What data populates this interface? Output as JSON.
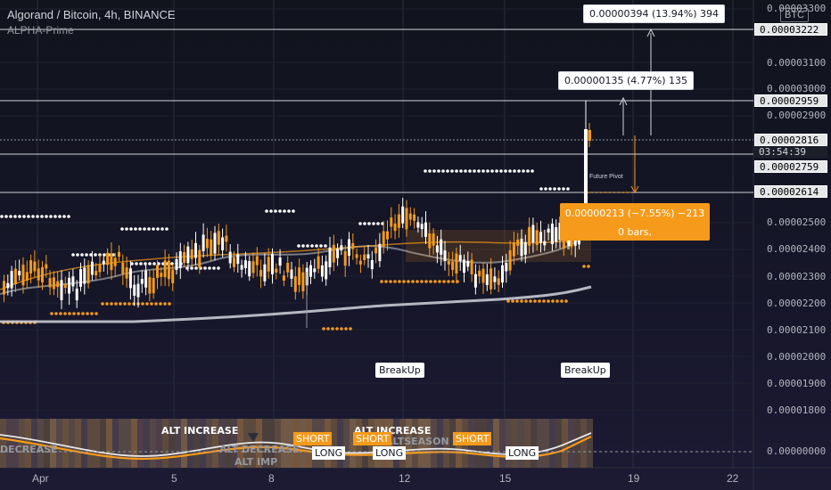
{
  "header": {
    "symbol_line": "Algorand / Bitcoin, 4h, BINANCE",
    "indicator": "ALPHA-Prime",
    "currency_button": "BTC"
  },
  "price_axis": {
    "ticks": [
      "0.00003300",
      "0.00003100",
      "0.00003000",
      "0.00002900",
      "0.00002500",
      "0.00002400",
      "0.00002300",
      "0.00002200",
      "0.00002100",
      "0.00002000",
      "0.00001900",
      "0.00001800"
    ],
    "lower_tick": "0.00000000",
    "highlighted": {
      "p3222": "0.00003222",
      "p2959": "0.00002959",
      "p2816": "0.00002816",
      "countdown": "03:54:39",
      "p2759": "0.00002759",
      "p2614": "0.00002614"
    }
  },
  "time_axis": {
    "labels": [
      "Apr",
      "5",
      "8",
      "12",
      "15",
      "19",
      "22"
    ]
  },
  "measurements": {
    "up_large": "0.00000394 (13.94%) 394",
    "up_small": "0.00000135 (4.77%) 135",
    "down_line1": "0.00000213 (−7.55%) −213",
    "down_line2": "0 bars,"
  },
  "annotations": {
    "future_pivot": "Future Pivot",
    "breakup_1": "BreakUp",
    "breakup_2": "BreakUp"
  },
  "indicator_panel": {
    "alt_increase_1": "ALT INCREASE",
    "alt_increase_2": "ALT INCREASE",
    "decrease": "DECREASE",
    "alt_decrease": "ALT DECREASE",
    "alt_season": "ALTSEASON",
    "alt_imp": "ALT IMP",
    "short_1": "SHORT",
    "short_2": "SHORT",
    "short_3": "SHORT",
    "long_1": "LONG",
    "long_2": "LONG",
    "long_3": "LONG"
  },
  "colors": {
    "bull": "#ffffff",
    "bear": "#f59a1b",
    "accent": "#f59a1b",
    "background": "#131722"
  }
}
